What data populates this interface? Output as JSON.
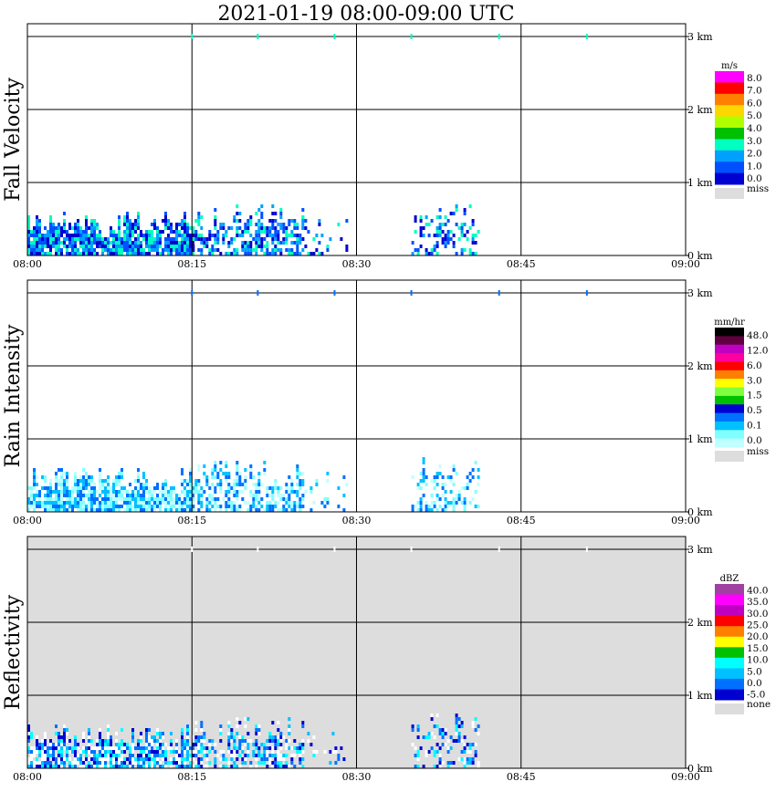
{
  "title": "2021-01-19   08:00-09:00 UTC",
  "colors": {
    "frame": "#000000",
    "reflectivity_background": "#dddddd"
  },
  "chart_data": [
    {
      "type": "heatmap",
      "title": "",
      "ylabel": "Fall Velocity",
      "x_ticks": [
        "08:00",
        "08:15",
        "08:30",
        "08:45",
        "09:00"
      ],
      "y_ticks": [
        "0 km",
        "1 km",
        "2 km",
        "3 km"
      ],
      "xlim": [
        "08:00",
        "09:00"
      ],
      "ylim_km": [
        0,
        3.1
      ],
      "grid": true,
      "legend": {
        "unit": "m/s",
        "labels": [
          "8.0",
          "7.0",
          "6.0",
          "5.0",
          "4.0",
          "3.0",
          "2.0",
          "1.0",
          "0.0"
        ],
        "colors": [
          "#ff00ff",
          "#ff0000",
          "#ff8000",
          "#ffd700",
          "#b0ff00",
          "#00c000",
          "#00ffc0",
          "#00a0ff",
          "#0050ff",
          "#0000d0"
        ],
        "missing_label": "miss",
        "missing_color": "#dddddd",
        "placement": "right"
      },
      "background": "#ffffff",
      "echo_colors": [
        "#0000d0",
        "#0050ff",
        "#00a0ff",
        "#00ffc0"
      ],
      "echo_regions": [
        {
          "start": "08:00",
          "end": "08:15",
          "top_km": 0.65,
          "density": 0.85
        },
        {
          "start": "08:15",
          "end": "08:25",
          "top_km": 0.75,
          "density": 0.6
        },
        {
          "start": "08:25",
          "end": "08:29",
          "top_km": 0.6,
          "density": 0.15
        },
        {
          "start": "08:35",
          "end": "08:41",
          "top_km": 0.8,
          "density": 0.35
        }
      ],
      "top_marks": [
        "08:15",
        "08:21",
        "08:28",
        "08:35",
        "08:43",
        "08:51"
      ]
    },
    {
      "type": "heatmap",
      "title": "",
      "ylabel": "Rain Intensity",
      "x_ticks": [
        "08:00",
        "08:15",
        "08:30",
        "08:45",
        "09:00"
      ],
      "y_ticks": [
        "0 km",
        "1 km",
        "2 km",
        "3 km"
      ],
      "xlim": [
        "08:00",
        "09:00"
      ],
      "ylim_km": [
        0,
        3.1
      ],
      "grid": true,
      "legend": {
        "unit": "mm/hr",
        "labels": [
          "48.0",
          "12.0",
          "6.0",
          "3.0",
          "1.5",
          "0.5",
          "0.1",
          "0.0"
        ],
        "colors": [
          "#000000",
          "#600040",
          "#c000c0",
          "#ff00a0",
          "#ff0000",
          "#ff8000",
          "#ffff00",
          "#80ff40",
          "#00c000",
          "#0000d0",
          "#0070ff",
          "#00c0ff",
          "#80ffff",
          "#c0ffff"
        ],
        "missing_label": "miss",
        "missing_color": "#dddddd",
        "placement": "right"
      },
      "background": "#ffffff",
      "echo_colors": [
        "#80ffff",
        "#c0ffff",
        "#00c0ff",
        "#0070ff"
      ],
      "echo_regions": [
        {
          "start": "08:00",
          "end": "08:15",
          "top_km": 0.65,
          "density": 0.85
        },
        {
          "start": "08:15",
          "end": "08:25",
          "top_km": 0.75,
          "density": 0.6
        },
        {
          "start": "08:25",
          "end": "08:29",
          "top_km": 0.6,
          "density": 0.15
        },
        {
          "start": "08:35",
          "end": "08:41",
          "top_km": 0.8,
          "density": 0.35
        }
      ],
      "top_marks": [
        "08:15",
        "08:21",
        "08:28",
        "08:35",
        "08:43",
        "08:51"
      ]
    },
    {
      "type": "heatmap",
      "title": "",
      "ylabel": "Reflectivity",
      "x_ticks": [
        "08:00",
        "08:15",
        "08:30",
        "08:45",
        "09:00"
      ],
      "y_ticks": [
        "0 km",
        "1 km",
        "2 km",
        "3 km"
      ],
      "xlim": [
        "08:00",
        "09:00"
      ],
      "ylim_km": [
        0,
        3.1
      ],
      "grid": true,
      "legend": {
        "unit": "dBZ",
        "labels": [
          "40.0",
          "35.0",
          "30.0",
          "25.0",
          "20.0",
          "15.0",
          "10.0",
          "5.0",
          "0.0",
          "-5.0"
        ],
        "colors": [
          "#a040a0",
          "#ff00ff",
          "#c000c0",
          "#ff0000",
          "#ff8000",
          "#ffff00",
          "#00c000",
          "#00ffff",
          "#00c0ff",
          "#0070ff",
          "#0000d0"
        ],
        "missing_label": "none",
        "missing_color": "#dddddd",
        "placement": "right"
      },
      "background": "#dddddd",
      "echo_colors": [
        "#0000d0",
        "#0070ff",
        "#00c0ff",
        "#00ffff",
        "#ffffff",
        "#ffffff"
      ],
      "echo_regions": [
        {
          "start": "08:00",
          "end": "08:15",
          "top_km": 0.65,
          "density": 0.85
        },
        {
          "start": "08:15",
          "end": "08:25",
          "top_km": 0.75,
          "density": 0.6
        },
        {
          "start": "08:25",
          "end": "08:29",
          "top_km": 0.6,
          "density": 0.15
        },
        {
          "start": "08:35",
          "end": "08:41",
          "top_km": 0.8,
          "density": 0.35
        }
      ],
      "top_marks": [
        "08:15",
        "08:21",
        "08:28",
        "08:35",
        "08:43",
        "08:51"
      ]
    }
  ]
}
